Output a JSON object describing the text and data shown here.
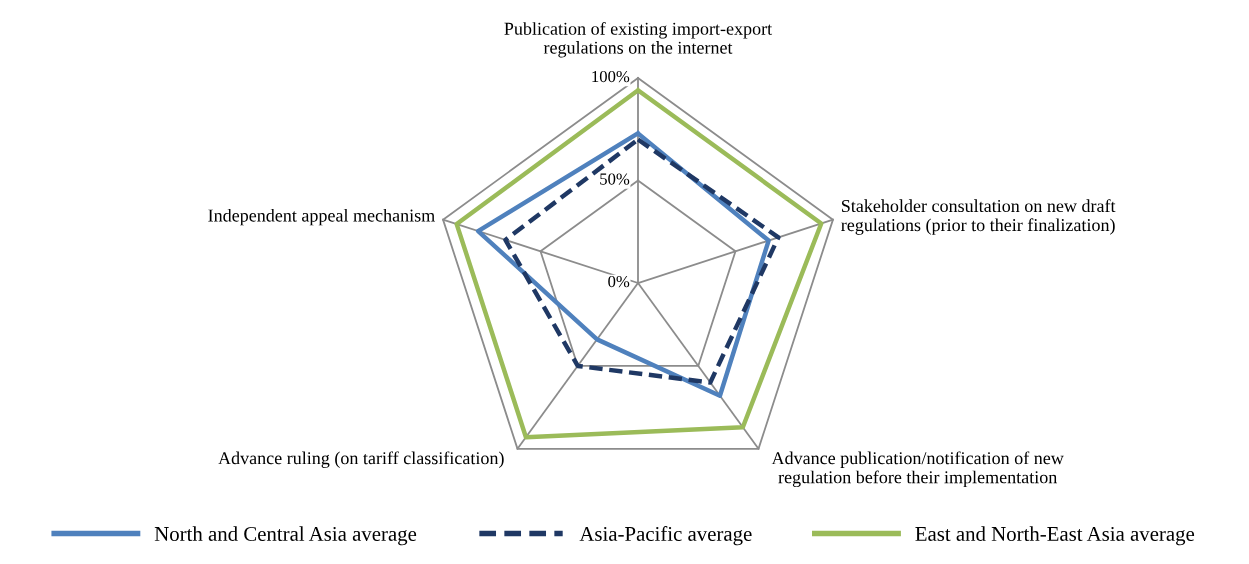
{
  "chart_data": {
    "type": "radar",
    "categories": [
      "Publication of existing import-export\nregulations on the internet",
      "Stakeholder consultation on new draft\nregulations (prior to their finalization)",
      "Advance publication/notification of new\nregulation before their implementation",
      "Advance ruling (on tariff classification)",
      "Independent appeal mechanism"
    ],
    "series": [
      {
        "name": "North and Central Asia average",
        "color": "#4f81bd",
        "line_style": "solid",
        "values": [
          73,
          67,
          68,
          34,
          82
        ]
      },
      {
        "name": "Asia-Pacific average",
        "color": "#1f3864",
        "line_style": "dashed",
        "values": [
          70,
          72,
          60,
          50,
          68
        ]
      },
      {
        "name": "East and North-East Asia average",
        "color": "#9bbb59",
        "line_style": "solid",
        "values": [
          94,
          94,
          87,
          93,
          93
        ]
      }
    ],
    "ylim": [
      0,
      100
    ],
    "yticks": [
      {
        "value": 0,
        "label": "0%"
      },
      {
        "value": 50,
        "label": "50%"
      },
      {
        "value": 100,
        "label": "100%"
      }
    ],
    "grid": true,
    "legend": "bottom",
    "marker": "none"
  }
}
